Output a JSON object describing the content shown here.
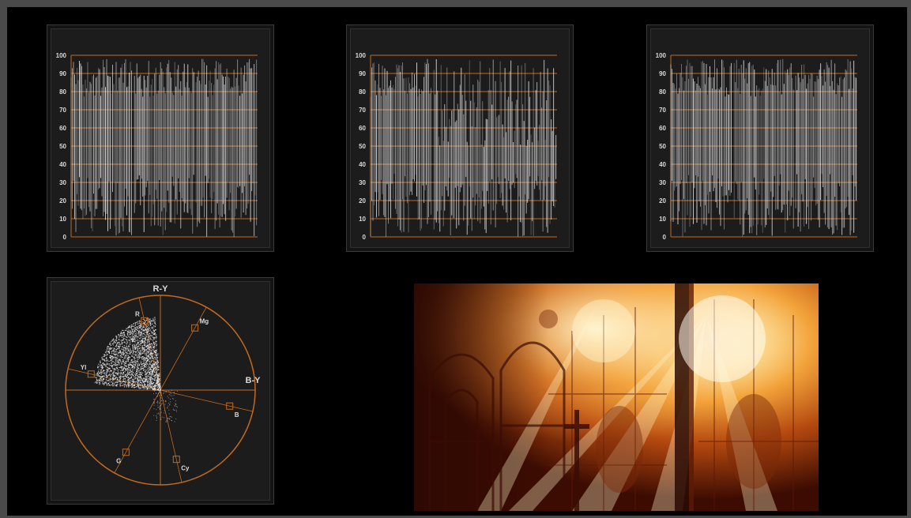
{
  "waveform_scale": [
    "0",
    "10",
    "20",
    "30",
    "40",
    "50",
    "60",
    "70",
    "80",
    "90",
    "100"
  ],
  "scope_colors": {
    "graticule": "#c26a1e",
    "trace": "#e8e8e8",
    "background": "#000000"
  },
  "waveform_panels": [
    {
      "name": "waveform-luma",
      "segments": [
        {
          "from": 0.0,
          "to": 0.33
        },
        {
          "from": 0.34,
          "to": 0.66
        },
        {
          "from": 0.67,
          "to": 1.0
        }
      ]
    },
    {
      "name": "waveform-parade",
      "segments": [
        {
          "from": 0.0,
          "to": 0.33
        },
        {
          "from": 0.34,
          "to": 0.66
        },
        {
          "from": 0.67,
          "to": 1.0
        }
      ]
    },
    {
      "name": "waveform-rgb",
      "segments": [
        {
          "from": 0.0,
          "to": 0.33
        },
        {
          "from": 0.34,
          "to": 0.66
        },
        {
          "from": 0.67,
          "to": 1.0
        }
      ]
    }
  ],
  "vectorscope": {
    "axis_vertical": "R-Y",
    "axis_horizontal": "B-Y",
    "targets": [
      {
        "label": "R",
        "angle": 103
      },
      {
        "label": "Mg",
        "angle": 61
      },
      {
        "label": "B",
        "angle": -13
      },
      {
        "label": "Cy",
        "angle": -77
      },
      {
        "label": "G",
        "angle": -119
      },
      {
        "label": "Yl",
        "angle": 167
      }
    ]
  },
  "preview": {
    "subject": "stained-glass-window-with-sunbeams"
  }
}
